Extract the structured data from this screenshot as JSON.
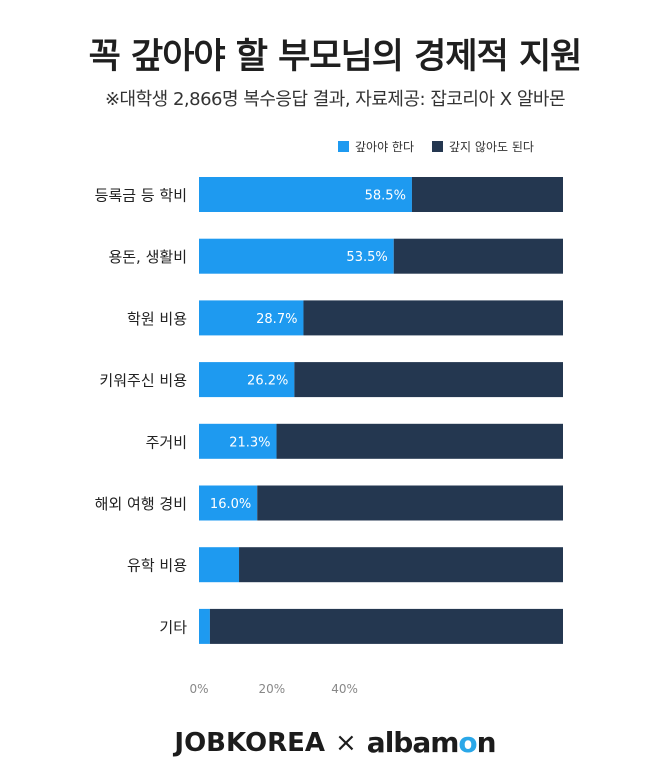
{
  "header": {
    "title": "꼭 갚아야 할 부모님의 경제적 지원",
    "subtitle": "※대학생 2,866명 복수응답 결과,  자료제공: 잡코리아 X 알바몬"
  },
  "legend": {
    "items": [
      {
        "label": "갚아야 한다",
        "color": "#1e9af0"
      },
      {
        "label": "갚지 않아도 된다",
        "color": "#243750"
      }
    ]
  },
  "chart_data": {
    "type": "bar",
    "orientation": "horizontal",
    "stacked": true,
    "categories": [
      "등록금 등 학비",
      "용돈, 생활비",
      "학원 비용",
      "키워주신 비용",
      "주거비",
      "해외 여행 경비",
      "유학 비용",
      "기타"
    ],
    "series": [
      {
        "name": "갚아야 한다",
        "values": [
          58.5,
          53.5,
          28.7,
          26.2,
          21.3,
          16.0,
          11.0,
          3.0
        ],
        "labels": [
          "58.5%",
          "53.5%",
          "28.7%",
          "26.2%",
          "21.3%",
          "16.0%",
          "",
          ""
        ]
      },
      {
        "name": "갚지 않아도 된다",
        "values": [
          41.5,
          46.5,
          71.3,
          73.8,
          78.7,
          84.0,
          89.0,
          97.0
        ]
      }
    ],
    "x_ticks": [
      "0%",
      "20%",
      "40%"
    ],
    "xlim": [
      0,
      100
    ],
    "colors": {
      "repay": "#1e9af0",
      "no_repay": "#243750"
    },
    "legend_position": "top-right"
  },
  "footer": {
    "brand_left": "JOBKOREA",
    "separator": "×",
    "brand_right_a": "albam",
    "brand_right_o": "o",
    "brand_right_n": "n"
  }
}
